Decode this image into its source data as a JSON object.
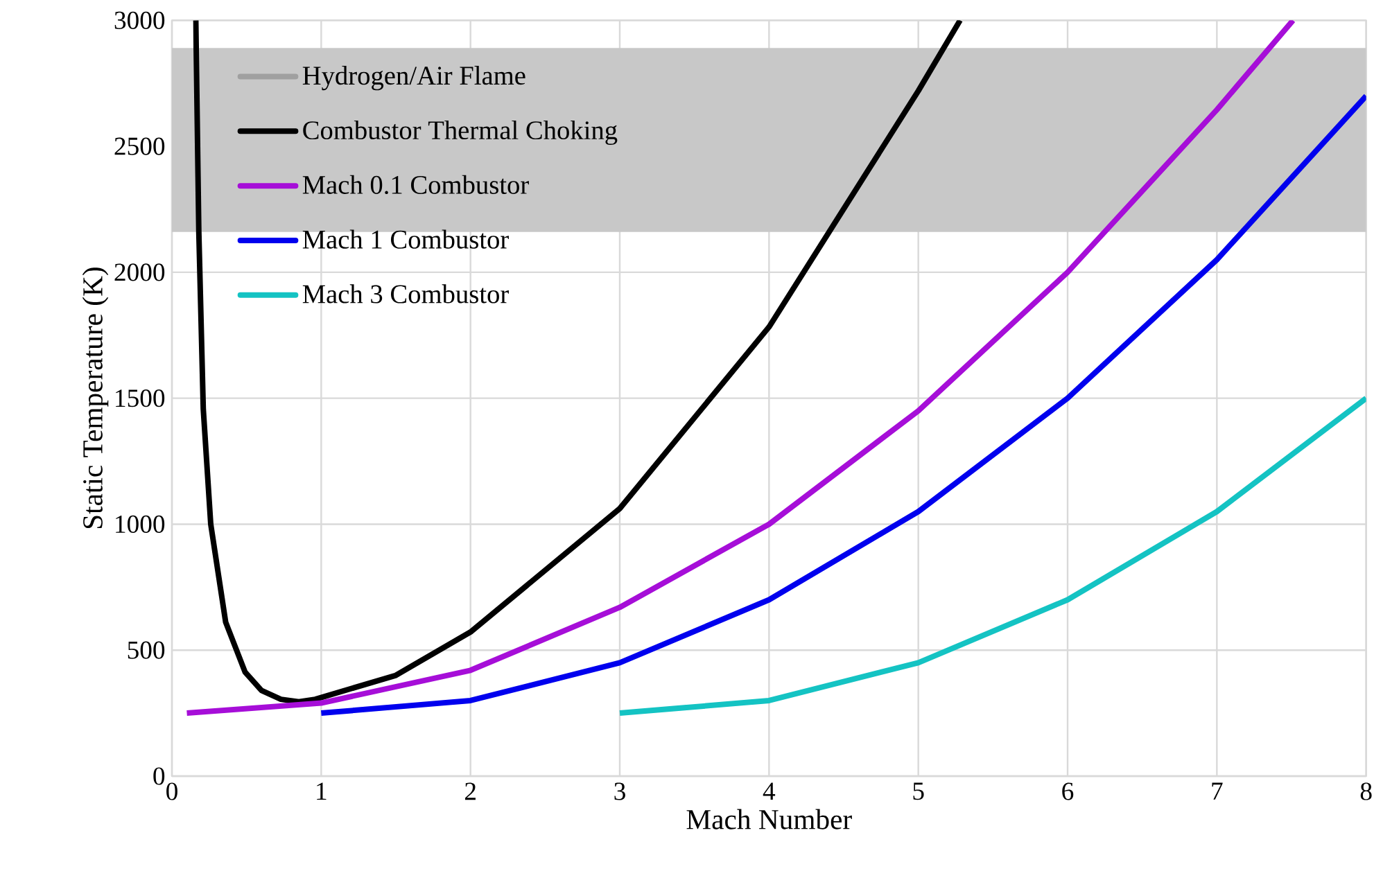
{
  "chart_data": {
    "type": "line",
    "xlabel": "Mach Number",
    "ylabel": "Static Temperature (K)",
    "xlim": [
      0,
      8
    ],
    "ylim": [
      0,
      3000
    ],
    "xticks": [
      0,
      1,
      2,
      3,
      4,
      5,
      6,
      7,
      8
    ],
    "yticks": [
      0,
      500,
      1000,
      1500,
      2000,
      2500,
      3000
    ],
    "grid": true,
    "legend": "top left",
    "marker": "none",
    "line_style": "solid",
    "bands": [
      {
        "axis": "y",
        "from": 2160,
        "to": 2890,
        "label": "Hydrogen/Air Flame",
        "color": "#c8c8c8"
      }
    ],
    "series": [
      {
        "name": "Combustor Thermal Choking",
        "color": "#000000",
        "x": [
          0.16,
          0.18,
          0.21,
          0.26,
          0.36,
          0.49,
          0.6,
          0.73,
          0.85,
          0.96,
          1.5,
          2,
          3,
          4,
          5,
          5.28
        ],
        "values": [
          3000,
          2164,
          1457,
          1000,
          611,
          413,
          340,
          305,
          295,
          305,
          400,
          572,
          1062,
          1783,
          2720,
          3000
        ]
      },
      {
        "name": "Mach 0.1 Combustor",
        "color": "#a60ed8",
        "x": [
          0.1,
          1,
          2,
          3,
          4,
          5,
          6,
          7,
          7.51
        ],
        "values": [
          250,
          290,
          420,
          670,
          1000,
          1450,
          2000,
          2645,
          3000
        ]
      },
      {
        "name": "Mach 1 Combustor",
        "color": "#0000ee",
        "x": [
          1,
          2,
          3,
          4,
          5,
          6,
          7,
          8
        ],
        "values": [
          250,
          300,
          450,
          700,
          1050,
          1500,
          2050,
          2700
        ]
      },
      {
        "name": "Mach 3 Combustor",
        "color": "#14c3c3",
        "x": [
          3,
          4,
          5,
          6,
          7,
          8
        ],
        "values": [
          250,
          300,
          450,
          700,
          1050,
          1500
        ]
      }
    ]
  }
}
